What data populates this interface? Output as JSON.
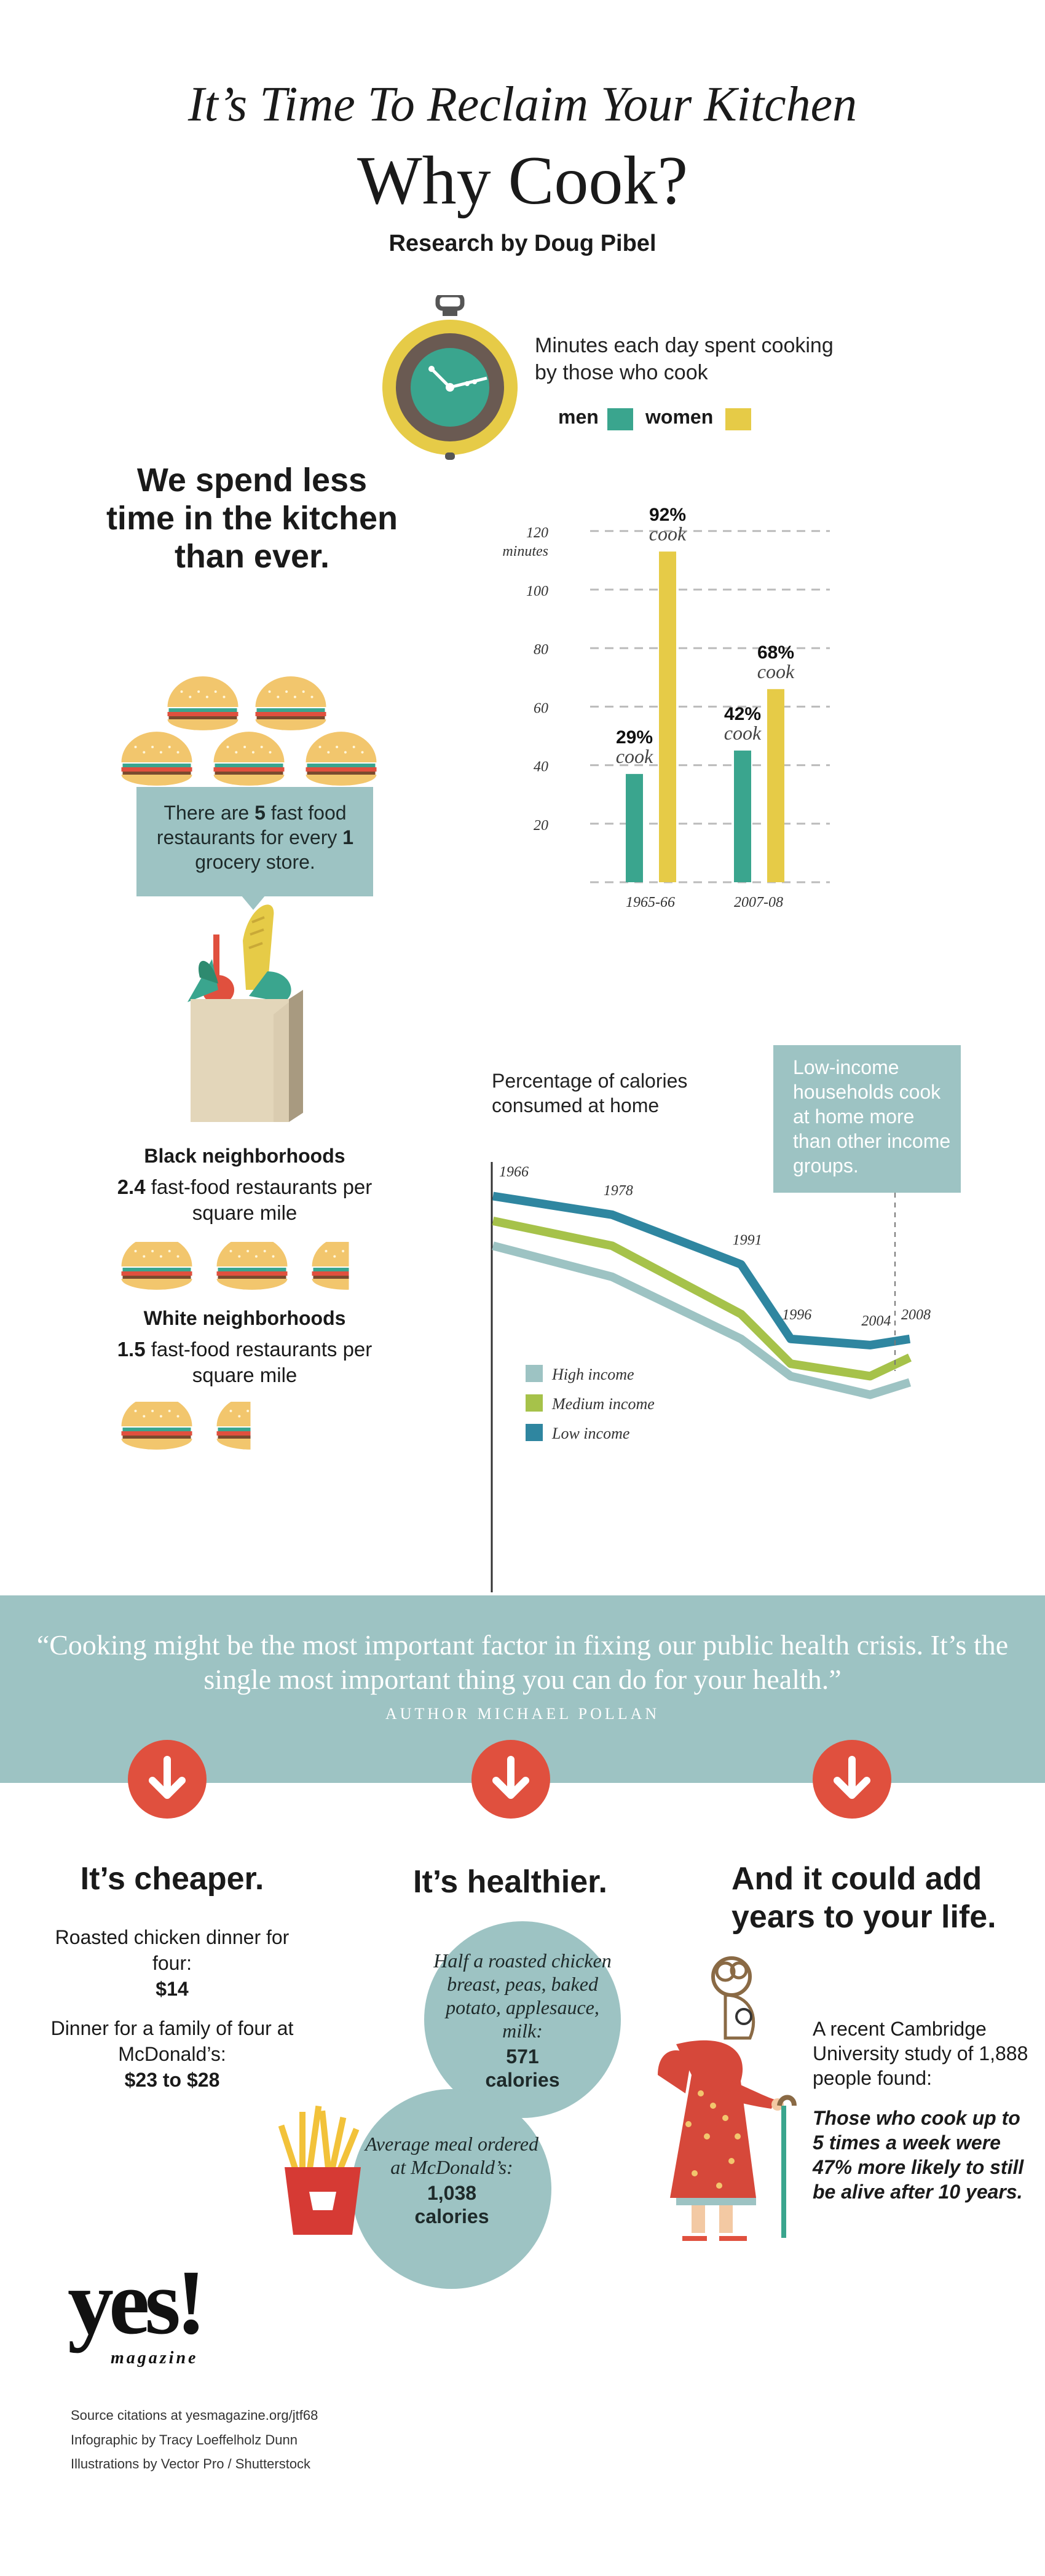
{
  "header": {
    "title_italic": "It’s Time To Reclaim Your Kitchen",
    "title_main": "Why Cook?",
    "byline": "Research by Doug Pibel"
  },
  "clock_legend": {
    "caption": "Minutes each day spent cooking by those who cook",
    "men_label": "men",
    "women_label": "women",
    "men_color": "#3aa58e",
    "women_color": "#e6cb47"
  },
  "spend_heading": "We spend less time in the kitchen than ever.",
  "fastfood": {
    "text_before": "There are ",
    "fast_count": "5",
    "text_middle": " fast food restaurants for every ",
    "grocery_count": "1",
    "text_after": " grocery store."
  },
  "neighborhoods": {
    "black_heading": "Black neighborhoods",
    "black_value": "2.4",
    "black_text": " fast-food restaurants per square mile",
    "white_heading": "White neighborhoods",
    "white_value": "1.5",
    "white_text": " fast-food restaurants per square mile"
  },
  "chart_data": [
    {
      "type": "bar",
      "ylabel": "minutes",
      "ylim": [
        0,
        125
      ],
      "yticks": [
        20,
        40,
        60,
        80,
        100,
        120
      ],
      "grid": true,
      "categories": [
        "1965-66",
        "2007-08"
      ],
      "series": [
        {
          "name": "men",
          "color": "#3aa58e",
          "values": [
            37,
            45
          ]
        },
        {
          "name": "women",
          "color": "#e6cb47",
          "values": [
            113,
            66
          ]
        }
      ],
      "annotations": [
        {
          "category": "1965-66",
          "series": "men",
          "pct": "29%",
          "word": "cook"
        },
        {
          "category": "1965-66",
          "series": "women",
          "pct": "92%",
          "word": "cook"
        },
        {
          "category": "2007-08",
          "series": "men",
          "pct": "42%",
          "word": "cook"
        },
        {
          "category": "2007-08",
          "series": "women",
          "pct": "68%",
          "word": "cook"
        }
      ]
    },
    {
      "type": "line",
      "title": "Percentage of calories consumed at home",
      "x": [
        1966,
        1978,
        1991,
        1996,
        2004,
        2008
      ],
      "ylim": [
        50,
        100
      ],
      "yticks": [
        {
          "value": 100,
          "label": "100%"
        },
        {
          "value": 80,
          "label": "80"
        },
        {
          "value": 60,
          "label": "60"
        }
      ],
      "series": [
        {
          "name": "High income",
          "color": "#9dc3c3",
          "values": [
            87,
            82,
            72,
            66,
            63,
            65
          ]
        },
        {
          "name": "Medium income",
          "color": "#a6c24a",
          "values": [
            91,
            87,
            76,
            68,
            66,
            69
          ]
        },
        {
          "name": "Low income",
          "color": "#2f86a0",
          "values": [
            95,
            92,
            84,
            72,
            71,
            72
          ]
        }
      ],
      "legend_position": "center-left",
      "annotation": "Low-income households cook at home more than other income groups."
    }
  ],
  "quote": {
    "text": "“Cooking might be the most important factor in fixing our public health crisis. It’s the single most important thing you can do for your health.”",
    "author": "AUTHOR MICHAEL POLLAN"
  },
  "cheaper": {
    "heading": "It’s cheaper.",
    "line1": "Roasted chicken dinner for four:",
    "price1": "$14",
    "line2": "Dinner for a family of four at McDonald’s:",
    "price2": "$23 to $28"
  },
  "healthier": {
    "heading": "It’s healthier.",
    "circle1_text": "Half a roasted chicken breast, peas, baked potato, applesauce, milk:",
    "circle1_value": "571",
    "circle1_unit": "calories",
    "circle2_text": "Average meal ordered at McDonald’s:",
    "circle2_value": "1,038",
    "circle2_unit": "calories"
  },
  "life": {
    "heading": "And it could add years to your life.",
    "text1": "A recent Cambridge University study of 1,888 people found:",
    "text2": "Those who cook up to 5 times a week were 47% more likely to still be alive after 10 years."
  },
  "logo": {
    "word": "yes!",
    "sub": "magazine"
  },
  "footer": {
    "line1": "Source citations at yesmagazine.org/jtf68",
    "line2": "Infographic by Tracy Loeffelholz Dunn",
    "line3": "Illustrations by Vector Pro / Shutterstock"
  },
  "colors": {
    "teal_band": "#9dc3c3",
    "arrow_red": "#e0503e",
    "bar_green": "#3aa58e",
    "bar_yellow": "#e6cb47"
  }
}
